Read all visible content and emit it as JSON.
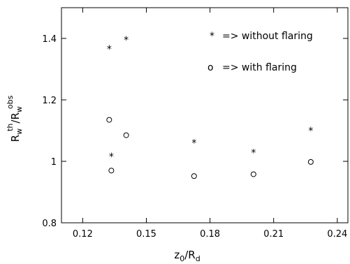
{
  "chart_data": {
    "type": "scatter",
    "xlim": [
      0.11,
      0.245
    ],
    "ylim": [
      0.8,
      1.5
    ],
    "x_ticks": [
      0.12,
      0.15,
      0.18,
      0.21,
      0.24
    ],
    "x_tick_labels": [
      "0.12",
      "0.15",
      "0.18",
      "0.21",
      "0.24"
    ],
    "y_ticks": [
      0.8,
      1.0,
      1.2,
      1.4
    ],
    "y_tick_labels": [
      "0.8",
      "1",
      "1.2",
      "1.4"
    ],
    "xlabel": {
      "main": "z",
      "sub1": "0",
      "slash": "/R",
      "sub2": "d"
    },
    "ylabel": {
      "main1": "R",
      "sub1": "w",
      "sup1": "th",
      "slash": "/R",
      "sub2": "w",
      "sup2": "obs"
    },
    "grid": false,
    "legend": [
      {
        "marker": "*",
        "text": "=> without flaring"
      },
      {
        "marker": "o",
        "text": "=> with flaring"
      }
    ],
    "series": [
      {
        "marker": "star",
        "points": [
          {
            "x": 0.1325,
            "y": 1.37
          },
          {
            "x": 0.1405,
            "y": 1.4
          },
          {
            "x": 0.1335,
            "y": 1.02
          },
          {
            "x": 0.1725,
            "y": 1.065
          },
          {
            "x": 0.2005,
            "y": 1.033
          },
          {
            "x": 0.2275,
            "y": 1.105
          }
        ]
      },
      {
        "marker": "circle",
        "points": [
          {
            "x": 0.1325,
            "y": 1.135
          },
          {
            "x": 0.1405,
            "y": 1.085
          },
          {
            "x": 0.1335,
            "y": 0.97
          },
          {
            "x": 0.1725,
            "y": 0.952
          },
          {
            "x": 0.2005,
            "y": 0.958
          },
          {
            "x": 0.2275,
            "y": 0.998
          }
        ]
      }
    ]
  }
}
